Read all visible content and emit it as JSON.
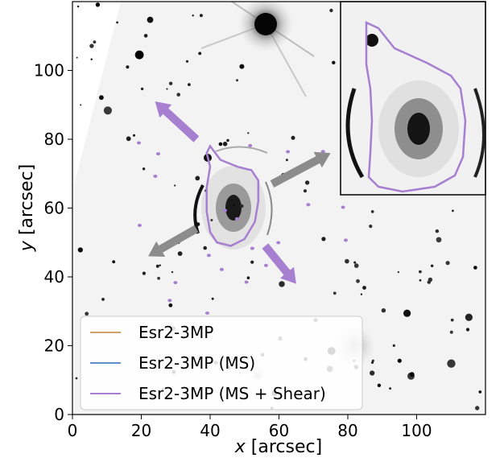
{
  "chart_data": {
    "type": "image",
    "title": "",
    "xlabel_var": "x",
    "xlabel_unit": " [arcsec]",
    "ylabel_var": "y",
    "ylabel_unit": " [arcsec]",
    "xlim": [
      0,
      120
    ],
    "ylim": [
      0,
      120
    ],
    "xticks": [
      "0",
      "20",
      "40",
      "60",
      "80",
      "100"
    ],
    "yticks": [
      "0",
      "20",
      "40",
      "60",
      "80",
      "100"
    ],
    "legend_position": "lower-left",
    "series": [
      {
        "name": "Esr2-3MP",
        "color": "#d4a06a"
      },
      {
        "name": "Esr2-3MP (MS)",
        "color": "#5b8fc7"
      },
      {
        "name": "Esr2-3MP (MS + Shear)",
        "color": "#a77fd1"
      }
    ],
    "lens_center": [
      47,
      60
    ],
    "arrows": [
      {
        "color": "#a77fd1",
        "from": [
          36,
          80
        ],
        "to": [
          24,
          91
        ]
      },
      {
        "color": "#a77fd1",
        "from": [
          56,
          49
        ],
        "to": [
          65,
          38
        ]
      },
      {
        "color": "#8c8c8c",
        "from": [
          36,
          54
        ],
        "to": [
          22,
          46
        ]
      },
      {
        "color": "#8c8c8c",
        "from": [
          58,
          67
        ],
        "to": [
          75,
          76
        ]
      }
    ],
    "critical_curve": [
      [
        40,
        78
      ],
      [
        43,
        74
      ],
      [
        48,
        72
      ],
      [
        52,
        71
      ],
      [
        54,
        68
      ],
      [
        54,
        62
      ],
      [
        53,
        56
      ],
      [
        50,
        51
      ],
      [
        46,
        49
      ],
      [
        42,
        50
      ],
      [
        40,
        53
      ],
      [
        39,
        59
      ],
      [
        39,
        66
      ],
      [
        40,
        72
      ],
      [
        39,
        76
      ],
      [
        40,
        78
      ]
    ],
    "colors": {
      "purple_arrow": "#a77fd1",
      "gray_arrow": "#8c8c8c",
      "background": "#f4f4f4"
    }
  }
}
